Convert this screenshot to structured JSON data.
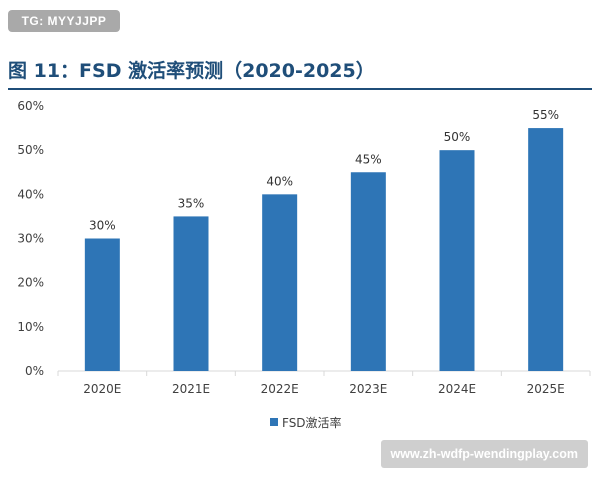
{
  "badge": {
    "text": "TG: MYYJJPP"
  },
  "figure": {
    "title": "图 11：FSD 激活率预测（2020-2025）"
  },
  "watermark": {
    "text": "www.zh-wdfp-wendingplay.com"
  },
  "colors": {
    "bar": "#2e75b6",
    "title": "#1f4e79",
    "axis": "#d9d9d9"
  },
  "chart_data": {
    "type": "bar",
    "title": "图 11：FSD 激活率预测（2020-2025）",
    "categories": [
      "2020E",
      "2021E",
      "2022E",
      "2023E",
      "2024E",
      "2025E"
    ],
    "series": [
      {
        "name": "FSD激活率",
        "values": [
          30,
          35,
          40,
          45,
          50,
          55
        ]
      }
    ],
    "data_labels": [
      "30%",
      "35%",
      "40%",
      "45%",
      "50%",
      "55%"
    ],
    "y_ticks": [
      "0%",
      "10%",
      "20%",
      "30%",
      "40%",
      "50%",
      "60%"
    ],
    "ylim": [
      0,
      60
    ],
    "xlabel": "",
    "ylabel": "",
    "grid": false,
    "legend": "bottom"
  }
}
